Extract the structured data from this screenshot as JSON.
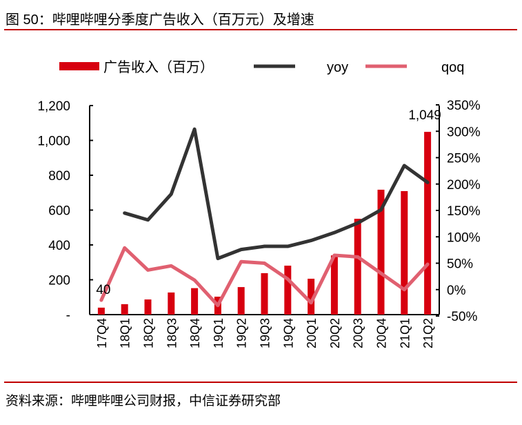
{
  "title": "图 50：哔哩哔哩分季度广告收入（百万元）及增速",
  "source": "资料来源：哔哩哔哩公司财报，中信证券研究部",
  "chart_data": {
    "type": "bar+line",
    "categories": [
      "17Q4",
      "18Q1",
      "18Q2",
      "18Q3",
      "18Q4",
      "19Q1",
      "19Q2",
      "19Q3",
      "19Q4",
      "20Q1",
      "20Q2",
      "20Q3",
      "20Q4",
      "21Q1",
      "21Q2"
    ],
    "series": [
      {
        "name": "广告收入（百万）",
        "type": "bar",
        "axis": "left",
        "color": "#d7000f",
        "values": [
          40,
          60,
          87,
          127,
          152,
          103,
          158,
          238,
          281,
          206,
          340,
          550,
          717,
          709,
          1049
        ]
      },
      {
        "name": "yoy",
        "type": "line",
        "axis": "right",
        "color": "#333333",
        "values": [
          null,
          145,
          132,
          181,
          304,
          59,
          76,
          82,
          82,
          93,
          108,
          126,
          151,
          235,
          203
        ]
      },
      {
        "name": "qoq",
        "type": "line",
        "axis": "right",
        "color": "#e06070",
        "values": [
          -20,
          79,
          37,
          45,
          18,
          -30,
          53,
          50,
          20,
          -25,
          65,
          62,
          31,
          0,
          48
        ]
      }
    ],
    "data_labels": [
      {
        "index": 0,
        "text": "40"
      },
      {
        "index": 14,
        "text": "1,049"
      }
    ],
    "left_axis": {
      "ylim": [
        0,
        1200
      ],
      "ticks": [
        "-",
        "200",
        "400",
        "600",
        "800",
        "1,000",
        "1,200"
      ]
    },
    "right_axis": {
      "ylim": [
        -50,
        350
      ],
      "ticks": [
        "-50%",
        "0%",
        "50%",
        "100%",
        "150%",
        "200%",
        "250%",
        "300%",
        "350%"
      ]
    },
    "legend": {
      "placement": "top",
      "entries": [
        "广告收入（百万）",
        "yoy",
        "qoq"
      ]
    }
  }
}
